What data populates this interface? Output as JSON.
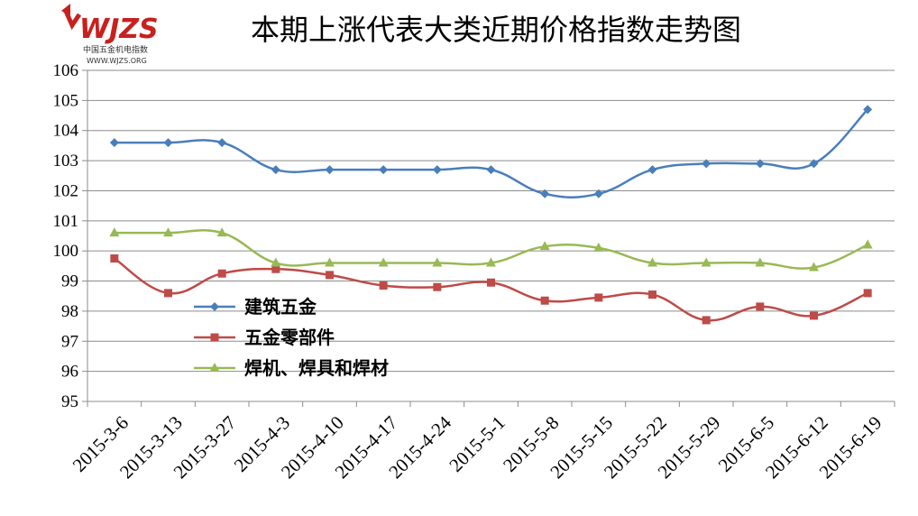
{
  "logo": {
    "brand": "WJZS",
    "subtitle": "中国五金机电指数",
    "url": "WWW.WJZS.ORG"
  },
  "chart_data": {
    "type": "line",
    "title": "本期上涨代表大类近期价格指数走势图",
    "xlabel": "",
    "ylabel": "",
    "ylim": [
      95,
      106
    ],
    "y_ticks": [
      95,
      96,
      97,
      98,
      99,
      100,
      101,
      102,
      103,
      104,
      105,
      106
    ],
    "grid": true,
    "legend_position": "left-middle",
    "categories": [
      "2015-3-6",
      "2015-3-13",
      "2015-3-27",
      "2015-4-3",
      "2015-4-10",
      "2015-4-17",
      "2015-4-24",
      "2015-5-1",
      "2015-5-8",
      "2015-5-15",
      "2015-5-22",
      "2015-5-29",
      "2015-6-5",
      "2015-6-12",
      "2015-6-19"
    ],
    "series": [
      {
        "name": "建筑五金",
        "color": "#4a7ebb",
        "marker": "diamond",
        "values": [
          103.6,
          103.6,
          103.6,
          102.7,
          102.7,
          102.7,
          102.7,
          102.7,
          101.9,
          101.9,
          102.7,
          102.9,
          102.9,
          102.9,
          104.7
        ]
      },
      {
        "name": "五金零部件",
        "color": "#be4b48",
        "marker": "square",
        "values": [
          99.75,
          98.6,
          99.25,
          99.4,
          99.2,
          98.85,
          98.8,
          98.95,
          98.35,
          98.45,
          98.55,
          97.7,
          98.15,
          97.85,
          98.6
        ]
      },
      {
        "name": "焊机、焊具和焊材",
        "color": "#98b954",
        "marker": "triangle",
        "values": [
          100.6,
          100.6,
          100.6,
          99.6,
          99.6,
          99.6,
          99.6,
          99.6,
          100.15,
          100.1,
          99.6,
          99.6,
          99.6,
          99.45,
          100.2
        ]
      }
    ]
  }
}
